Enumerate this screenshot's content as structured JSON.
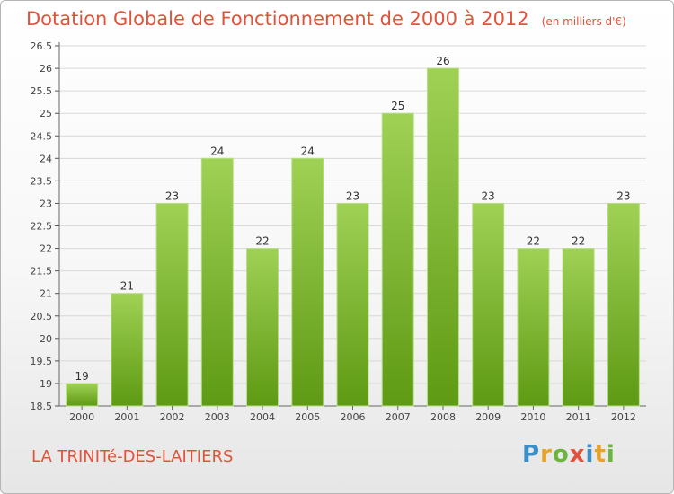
{
  "title": "Dotation Globale de Fonctionnement de 2000 à 2012",
  "unit_note": "(en milliers d'€)",
  "commune_name": "LA TRINITé-DES-LAITIERS",
  "logo": {
    "text": "Proxiti",
    "letters": [
      {
        "ch": "P",
        "color": "#3a8ec9"
      },
      {
        "ch": "r",
        "color": "#e8a325"
      },
      {
        "ch": "o",
        "color": "#6db33f"
      },
      {
        "ch": "x",
        "color": "#e0533a"
      },
      {
        "ch": "i",
        "color": "#3a8ec9"
      },
      {
        "ch": "t",
        "color": "#e8a325"
      },
      {
        "ch": "i",
        "color": "#6db33f"
      }
    ]
  },
  "colors": {
    "accent": "#e0533a",
    "bar_top": "#9fd155",
    "bar_bottom": "#5e9a13",
    "grid": "#d8d8d8"
  },
  "chart_data": {
    "type": "bar",
    "categories": [
      "2000",
      "2001",
      "2002",
      "2003",
      "2004",
      "2005",
      "2006",
      "2007",
      "2008",
      "2009",
      "2010",
      "2011",
      "2012"
    ],
    "values": [
      19,
      21,
      23,
      24,
      22,
      24,
      23,
      25,
      26,
      23,
      22,
      22,
      23
    ],
    "data_labels": [
      "19",
      "21",
      "23",
      "24",
      "22",
      "24",
      "23",
      "25",
      "26",
      "23",
      "22",
      "22",
      "23"
    ],
    "yticks": [
      "18.5",
      "19",
      "19.5",
      "20",
      "20.5",
      "21",
      "21.5",
      "22",
      "22.5",
      "23",
      "23.5",
      "24",
      "24.5",
      "25",
      "25.5",
      "26",
      "26.5"
    ],
    "ylim": [
      18.5,
      26.5
    ],
    "grid": true,
    "xlabel": "",
    "ylabel": ""
  }
}
